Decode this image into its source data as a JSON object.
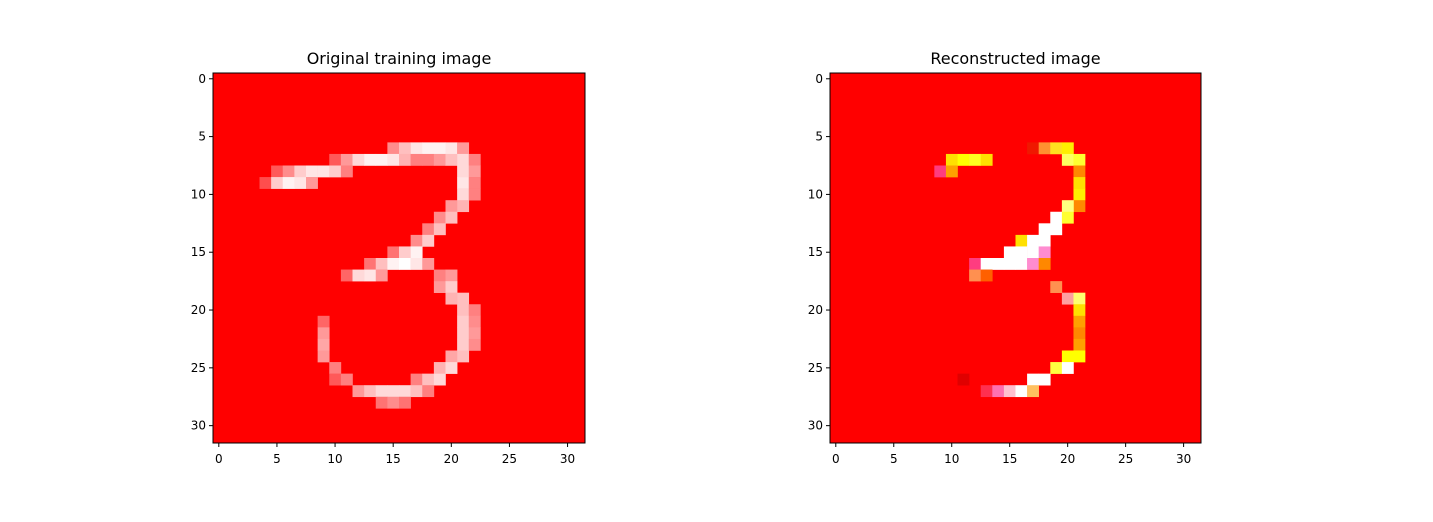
{
  "colors": {
    "background": "#ff0000",
    "white": "#ffffff",
    "yellow": "#ffff00",
    "orange": "#ff8000",
    "magenta": "#ff2080",
    "pink": "#ff8ccc"
  },
  "chart_data": [
    {
      "type": "heatmap",
      "title": "Original training image",
      "xlabel": "",
      "ylabel": "",
      "xlim": [
        -0.5,
        31.5
      ],
      "ylim": [
        31.5,
        -0.5
      ],
      "xticks": [
        0,
        5,
        10,
        15,
        20,
        25,
        30
      ],
      "yticks": [
        0,
        5,
        10,
        15,
        20,
        25,
        30
      ],
      "background": "#ff0000",
      "cells": [
        [
          6,
          15,
          0.55
        ],
        [
          6,
          16,
          0.75
        ],
        [
          6,
          17,
          0.9
        ],
        [
          6,
          18,
          0.95
        ],
        [
          6,
          19,
          0.95
        ],
        [
          6,
          20,
          0.9
        ],
        [
          6,
          21,
          0.6
        ],
        [
          7,
          10,
          0.35
        ],
        [
          7,
          11,
          0.6
        ],
        [
          7,
          12,
          0.85
        ],
        [
          7,
          13,
          0.95
        ],
        [
          7,
          14,
          0.95
        ],
        [
          7,
          15,
          0.9
        ],
        [
          7,
          16,
          0.7
        ],
        [
          7,
          17,
          0.5
        ],
        [
          7,
          18,
          0.5
        ],
        [
          7,
          19,
          0.6
        ],
        [
          7,
          20,
          0.75
        ],
        [
          7,
          21,
          0.85
        ],
        [
          7,
          22,
          0.5
        ],
        [
          8,
          5,
          0.35
        ],
        [
          8,
          6,
          0.55
        ],
        [
          8,
          7,
          0.8
        ],
        [
          8,
          8,
          0.9
        ],
        [
          8,
          9,
          0.9
        ],
        [
          8,
          10,
          0.8
        ],
        [
          8,
          11,
          0.5
        ],
        [
          8,
          21,
          0.85
        ],
        [
          8,
          22,
          0.6
        ],
        [
          9,
          4,
          0.3
        ],
        [
          9,
          5,
          0.8
        ],
        [
          9,
          6,
          0.95
        ],
        [
          9,
          7,
          0.9
        ],
        [
          9,
          8,
          0.6
        ],
        [
          9,
          21,
          0.9
        ],
        [
          9,
          22,
          0.5
        ],
        [
          10,
          21,
          0.85
        ],
        [
          10,
          22,
          0.5
        ],
        [
          11,
          20,
          0.6
        ],
        [
          11,
          21,
          0.7
        ],
        [
          12,
          19,
          0.55
        ],
        [
          12,
          20,
          0.75
        ],
        [
          13,
          18,
          0.5
        ],
        [
          13,
          19,
          0.75
        ],
        [
          14,
          17,
          0.55
        ],
        [
          14,
          18,
          0.8
        ],
        [
          15,
          15,
          0.45
        ],
        [
          15,
          16,
          0.8
        ],
        [
          15,
          17,
          0.95
        ],
        [
          16,
          13,
          0.45
        ],
        [
          16,
          14,
          0.75
        ],
        [
          16,
          15,
          0.95
        ],
        [
          16,
          16,
          1.0
        ],
        [
          16,
          17,
          0.9
        ],
        [
          16,
          18,
          0.6
        ],
        [
          17,
          11,
          0.4
        ],
        [
          17,
          12,
          0.85
        ],
        [
          17,
          13,
          0.9
        ],
        [
          17,
          14,
          0.6
        ],
        [
          17,
          19,
          0.5
        ],
        [
          17,
          20,
          0.6
        ],
        [
          18,
          19,
          0.6
        ],
        [
          18,
          20,
          0.8
        ],
        [
          19,
          20,
          0.7
        ],
        [
          19,
          21,
          0.75
        ],
        [
          20,
          21,
          0.75
        ],
        [
          20,
          22,
          0.5
        ],
        [
          21,
          9,
          0.4
        ],
        [
          21,
          21,
          0.8
        ],
        [
          21,
          22,
          0.55
        ],
        [
          22,
          9,
          0.6
        ],
        [
          22,
          21,
          0.8
        ],
        [
          22,
          22,
          0.6
        ],
        [
          23,
          9,
          0.65
        ],
        [
          23,
          21,
          0.8
        ],
        [
          23,
          22,
          0.55
        ],
        [
          24,
          9,
          0.6
        ],
        [
          24,
          20,
          0.65
        ],
        [
          24,
          21,
          0.75
        ],
        [
          25,
          10,
          0.5
        ],
        [
          25,
          19,
          0.7
        ],
        [
          25,
          20,
          0.85
        ],
        [
          26,
          10,
          0.35
        ],
        [
          26,
          11,
          0.5
        ],
        [
          26,
          17,
          0.5
        ],
        [
          26,
          18,
          0.75
        ],
        [
          26,
          19,
          0.85
        ],
        [
          27,
          12,
          0.6
        ],
        [
          27,
          13,
          0.75
        ],
        [
          27,
          14,
          0.85
        ],
        [
          27,
          15,
          0.85
        ],
        [
          27,
          16,
          0.85
        ],
        [
          27,
          17,
          0.75
        ],
        [
          27,
          18,
          0.5
        ],
        [
          28,
          14,
          0.45
        ],
        [
          28,
          15,
          0.55
        ],
        [
          28,
          16,
          0.45
        ]
      ]
    },
    {
      "type": "heatmap",
      "title": "Reconstructed image",
      "xlabel": "",
      "ylabel": "",
      "xlim": [
        -0.5,
        31.5
      ],
      "ylim": [
        31.5,
        -0.5
      ],
      "xticks": [
        0,
        5,
        10,
        15,
        20,
        25,
        30
      ],
      "yticks": [
        0,
        5,
        10,
        15,
        20,
        25,
        30
      ],
      "background": "#ff0000",
      "cells": [
        [
          6,
          17,
          "#f01800"
        ],
        [
          6,
          18,
          "#ff9030"
        ],
        [
          6,
          19,
          "#ffe020"
        ],
        [
          6,
          20,
          "#ffee00"
        ],
        [
          7,
          10,
          "#ffe000"
        ],
        [
          7,
          11,
          "#ffff00"
        ],
        [
          7,
          12,
          "#ffff20"
        ],
        [
          7,
          13,
          "#ffe000"
        ],
        [
          7,
          20,
          "#ffff60"
        ],
        [
          7,
          21,
          "#ffff30"
        ],
        [
          8,
          9,
          "#ff3c80"
        ],
        [
          8,
          10,
          "#ffa000"
        ],
        [
          8,
          21,
          "#ff8800"
        ],
        [
          9,
          21,
          "#ffe000"
        ],
        [
          10,
          21,
          "#ffee00"
        ],
        [
          11,
          21,
          "#ff8800"
        ],
        [
          11,
          20,
          "#ffff80"
        ],
        [
          12,
          19,
          "#ffffff"
        ],
        [
          12,
          20,
          "#ffff30"
        ],
        [
          13,
          18,
          "#ffffff"
        ],
        [
          13,
          19,
          "#ffffff"
        ],
        [
          14,
          16,
          "#ffe000"
        ],
        [
          14,
          17,
          "#ffffff"
        ],
        [
          14,
          18,
          "#ffffff"
        ],
        [
          15,
          15,
          "#ffffff"
        ],
        [
          15,
          16,
          "#ffffff"
        ],
        [
          15,
          17,
          "#ffffff"
        ],
        [
          15,
          18,
          "#ff8cd0"
        ],
        [
          16,
          12,
          "#ff3c80"
        ],
        [
          16,
          13,
          "#ffffff"
        ],
        [
          16,
          14,
          "#ffffff"
        ],
        [
          16,
          15,
          "#ffffff"
        ],
        [
          16,
          16,
          "#ffffff"
        ],
        [
          16,
          17,
          "#ff8cd0"
        ],
        [
          16,
          18,
          "#ff8800"
        ],
        [
          17,
          12,
          "#ff9050"
        ],
        [
          17,
          13,
          "#ff6000"
        ],
        [
          18,
          19,
          "#ff9050"
        ],
        [
          19,
          20,
          "#ffa0a0"
        ],
        [
          19,
          21,
          "#ffff70"
        ],
        [
          20,
          21,
          "#ffe000"
        ],
        [
          21,
          21,
          "#ffa000"
        ],
        [
          22,
          21,
          "#ff8800"
        ],
        [
          23,
          21,
          "#ffa000"
        ],
        [
          24,
          20,
          "#ffff00"
        ],
        [
          24,
          21,
          "#ffff00"
        ],
        [
          25,
          19,
          "#ffff40"
        ],
        [
          25,
          20,
          "#ffffff"
        ],
        [
          26,
          11,
          "#e00000"
        ],
        [
          26,
          17,
          "#ffffff"
        ],
        [
          26,
          18,
          "#ffffff"
        ],
        [
          27,
          13,
          "#ff3050"
        ],
        [
          27,
          14,
          "#ff70b0"
        ],
        [
          27,
          15,
          "#ffc0d0"
        ],
        [
          27,
          16,
          "#ffffff"
        ],
        [
          27,
          17,
          "#ffc060"
        ]
      ]
    }
  ]
}
